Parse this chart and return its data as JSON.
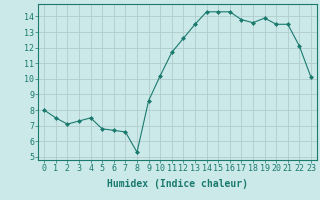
{
  "x": [
    0,
    1,
    2,
    3,
    4,
    5,
    6,
    7,
    8,
    9,
    10,
    11,
    12,
    13,
    14,
    15,
    16,
    17,
    18,
    19,
    20,
    21,
    22,
    23
  ],
  "y": [
    8.0,
    7.5,
    7.1,
    7.3,
    7.5,
    6.8,
    6.7,
    6.6,
    5.3,
    8.6,
    10.2,
    11.7,
    12.6,
    13.5,
    14.3,
    14.3,
    14.3,
    13.8,
    13.6,
    13.9,
    13.5,
    13.5,
    12.1,
    10.1
  ],
  "line_color": "#1a7a6e",
  "marker": "D",
  "marker_size": 2,
  "xlabel": "Humidex (Indice chaleur)",
  "ylim": [
    4.8,
    14.8
  ],
  "xlim": [
    -0.5,
    23.5
  ],
  "yticks": [
    5,
    6,
    7,
    8,
    9,
    10,
    11,
    12,
    13,
    14
  ],
  "xticks": [
    0,
    1,
    2,
    3,
    4,
    5,
    6,
    7,
    8,
    9,
    10,
    11,
    12,
    13,
    14,
    15,
    16,
    17,
    18,
    19,
    20,
    21,
    22,
    23
  ],
  "bg_color": "#cce9e9",
  "grid_color": "#b0cccc",
  "tick_color": "#1a7a6e",
  "label_color": "#1a7a6e",
  "font_size_label": 7,
  "font_size_tick": 6
}
